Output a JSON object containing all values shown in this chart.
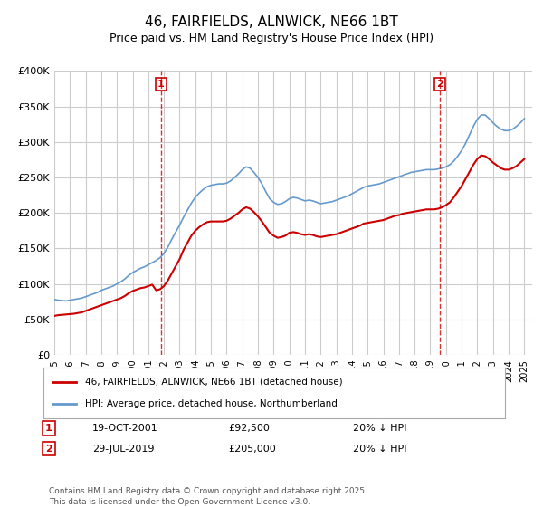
{
  "title": "46, FAIRFIELDS, ALNWICK, NE66 1BT",
  "subtitle": "Price paid vs. HM Land Registry's House Price Index (HPI)",
  "ylabel": "",
  "ylim": [
    0,
    400000
  ],
  "yticks": [
    0,
    50000,
    100000,
    150000,
    200000,
    250000,
    300000,
    350000,
    400000
  ],
  "ytick_labels": [
    "£0",
    "£50K",
    "£100K",
    "£150K",
    "£200K",
    "£250K",
    "£300K",
    "£350K",
    "£400K"
  ],
  "xlim_start": 1995.0,
  "xlim_end": 2025.5,
  "xtick_years": [
    1995,
    1996,
    1997,
    1998,
    1999,
    2000,
    2001,
    2002,
    2003,
    2004,
    2005,
    2006,
    2007,
    2008,
    2009,
    2010,
    2011,
    2012,
    2013,
    2014,
    2015,
    2016,
    2017,
    2018,
    2019,
    2020,
    2021,
    2022,
    2023,
    2024,
    2025
  ],
  "marker1_x": 2001.8,
  "marker1_label": "1",
  "marker1_date": "19-OCT-2001",
  "marker1_price": "£92,500",
  "marker1_hpi": "20% ↓ HPI",
  "marker2_x": 2019.6,
  "marker2_label": "2",
  "marker2_date": "29-JUL-2019",
  "marker2_price": "£205,000",
  "marker2_hpi": "20% ↓ HPI",
  "legend_label1": "46, FAIRFIELDS, ALNWICK, NE66 1BT (detached house)",
  "legend_label2": "HPI: Average price, detached house, Northumberland",
  "footer": "Contains HM Land Registry data © Crown copyright and database right 2025.\nThis data is licensed under the Open Government Licence v3.0.",
  "line_color_red": "#cc0000",
  "line_color_blue": "#6699cc",
  "grid_color": "#cccccc",
  "bg_color": "#ffffff",
  "hpi_data_x": [
    1995.0,
    1995.25,
    1995.5,
    1995.75,
    1996.0,
    1996.25,
    1996.5,
    1996.75,
    1997.0,
    1997.25,
    1997.5,
    1997.75,
    1998.0,
    1998.25,
    1998.5,
    1998.75,
    1999.0,
    1999.25,
    1999.5,
    1999.75,
    2000.0,
    2000.25,
    2000.5,
    2000.75,
    2001.0,
    2001.25,
    2001.5,
    2001.75,
    2002.0,
    2002.25,
    2002.5,
    2002.75,
    2003.0,
    2003.25,
    2003.5,
    2003.75,
    2004.0,
    2004.25,
    2004.5,
    2004.75,
    2005.0,
    2005.25,
    2005.5,
    2005.75,
    2006.0,
    2006.25,
    2006.5,
    2006.75,
    2007.0,
    2007.25,
    2007.5,
    2007.75,
    2008.0,
    2008.25,
    2008.5,
    2008.75,
    2009.0,
    2009.25,
    2009.5,
    2009.75,
    2010.0,
    2010.25,
    2010.5,
    2010.75,
    2011.0,
    2011.25,
    2011.5,
    2011.75,
    2012.0,
    2012.25,
    2012.5,
    2012.75,
    2013.0,
    2013.25,
    2013.5,
    2013.75,
    2014.0,
    2014.25,
    2014.5,
    2014.75,
    2015.0,
    2015.25,
    2015.5,
    2015.75,
    2016.0,
    2016.25,
    2016.5,
    2016.75,
    2017.0,
    2017.25,
    2017.5,
    2017.75,
    2018.0,
    2018.25,
    2018.5,
    2018.75,
    2019.0,
    2019.25,
    2019.5,
    2019.75,
    2020.0,
    2020.25,
    2020.5,
    2020.75,
    2021.0,
    2021.25,
    2021.5,
    2021.75,
    2022.0,
    2022.25,
    2022.5,
    2022.75,
    2023.0,
    2023.25,
    2023.5,
    2023.75,
    2024.0,
    2024.25,
    2024.5,
    2024.75,
    2025.0
  ],
  "hpi_data_y": [
    78000,
    77000,
    76500,
    76000,
    77000,
    78000,
    79000,
    80000,
    82000,
    84000,
    86000,
    88000,
    91000,
    93000,
    95000,
    97000,
    100000,
    103000,
    107000,
    112000,
    116000,
    119000,
    122000,
    124000,
    127000,
    130000,
    133000,
    137000,
    143000,
    152000,
    163000,
    173000,
    183000,
    194000,
    204000,
    214000,
    222000,
    228000,
    233000,
    237000,
    239000,
    240000,
    241000,
    241000,
    242000,
    245000,
    250000,
    255000,
    261000,
    265000,
    263000,
    257000,
    250000,
    241000,
    230000,
    220000,
    215000,
    212000,
    213000,
    216000,
    220000,
    222000,
    221000,
    219000,
    217000,
    218000,
    217000,
    215000,
    213000,
    214000,
    215000,
    216000,
    218000,
    220000,
    222000,
    224000,
    227000,
    230000,
    233000,
    236000,
    238000,
    239000,
    240000,
    241000,
    243000,
    245000,
    247000,
    249000,
    251000,
    253000,
    255000,
    257000,
    258000,
    259000,
    260000,
    261000,
    261000,
    261000,
    262000,
    263000,
    265000,
    268000,
    273000,
    280000,
    288000,
    298000,
    310000,
    322000,
    332000,
    338000,
    338000,
    333000,
    327000,
    322000,
    318000,
    316000,
    316000,
    318000,
    322000,
    327000,
    333000
  ],
  "price_data_x": [
    1995.0,
    1995.25,
    1995.5,
    1995.75,
    1996.0,
    1996.25,
    1996.5,
    1996.75,
    1997.0,
    1997.25,
    1997.5,
    1997.75,
    1998.0,
    1998.25,
    1998.5,
    1998.75,
    1999.0,
    1999.25,
    1999.5,
    1999.75,
    2000.0,
    2000.25,
    2000.5,
    2000.75,
    2001.0,
    2001.25,
    2001.5,
    2001.75,
    2002.0,
    2002.25,
    2002.5,
    2002.75,
    2003.0,
    2003.25,
    2003.5,
    2003.75,
    2004.0,
    2004.25,
    2004.5,
    2004.75,
    2005.0,
    2005.25,
    2005.5,
    2005.75,
    2006.0,
    2006.25,
    2006.5,
    2006.75,
    2007.0,
    2007.25,
    2007.5,
    2007.75,
    2008.0,
    2008.25,
    2008.5,
    2008.75,
    2009.0,
    2009.25,
    2009.5,
    2009.75,
    2010.0,
    2010.25,
    2010.5,
    2010.75,
    2011.0,
    2011.25,
    2011.5,
    2011.75,
    2012.0,
    2012.25,
    2012.5,
    2012.75,
    2013.0,
    2013.25,
    2013.5,
    2013.75,
    2014.0,
    2014.25,
    2014.5,
    2014.75,
    2015.0,
    2015.25,
    2015.5,
    2015.75,
    2016.0,
    2016.25,
    2016.5,
    2016.75,
    2017.0,
    2017.25,
    2017.5,
    2017.75,
    2018.0,
    2018.25,
    2018.5,
    2018.75,
    2019.0,
    2019.25,
    2019.5,
    2019.75,
    2020.0,
    2020.25,
    2020.5,
    2020.75,
    2021.0,
    2021.25,
    2021.5,
    2021.75,
    2022.0,
    2022.25,
    2022.5,
    2022.75,
    2023.0,
    2023.25,
    2023.5,
    2023.75,
    2024.0,
    2024.25,
    2024.5,
    2024.75,
    2025.0
  ],
  "price_data_y": [
    55000,
    56000,
    56500,
    57000,
    57500,
    58000,
    59000,
    60000,
    62000,
    64000,
    66000,
    68000,
    70000,
    72000,
    74000,
    76000,
    78000,
    80000,
    83000,
    87000,
    90000,
    92000,
    94000,
    95000,
    97000,
    99000,
    91000,
    92500,
    97000,
    105000,
    115000,
    125000,
    135000,
    148000,
    158000,
    168000,
    175000,
    180000,
    184000,
    187000,
    188000,
    188000,
    188000,
    188000,
    189000,
    192000,
    196000,
    200000,
    205000,
    208000,
    206000,
    201000,
    195000,
    188000,
    180000,
    172000,
    168000,
    165000,
    166000,
    168000,
    172000,
    173000,
    172000,
    170000,
    169000,
    170000,
    169000,
    167000,
    166000,
    167000,
    168000,
    169000,
    170000,
    172000,
    174000,
    176000,
    178000,
    180000,
    182000,
    185000,
    186000,
    187000,
    188000,
    189000,
    190000,
    192000,
    194000,
    196000,
    197000,
    199000,
    200000,
    201000,
    202000,
    203000,
    204000,
    205000,
    205000,
    205000,
    206000,
    208000,
    211000,
    215000,
    222000,
    230000,
    238000,
    248000,
    258000,
    268000,
    276000,
    281000,
    280000,
    276000,
    271000,
    267000,
    263000,
    261000,
    261000,
    263000,
    266000,
    271000,
    276000
  ],
  "title_fontsize": 11,
  "subtitle_fontsize": 9
}
